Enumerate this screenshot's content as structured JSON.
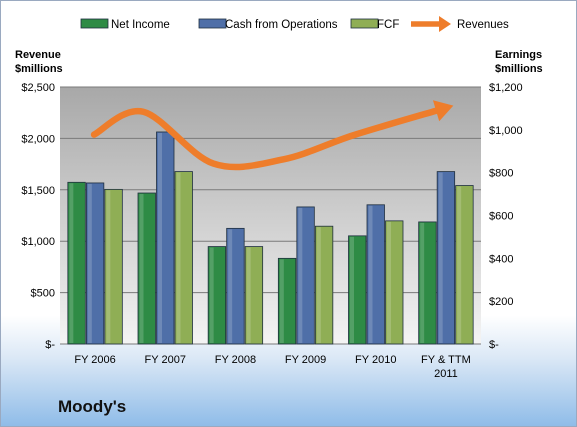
{
  "company": "Moody's",
  "chart_data": {
    "type": "bar",
    "categories": [
      "FY 2006",
      "FY 2007",
      "FY 2008",
      "FY 2009",
      "FY 2010",
      "FY & TTM 2011"
    ],
    "category_lines": [
      [
        "FY 2006"
      ],
      [
        "FY 2007"
      ],
      [
        "FY 2008"
      ],
      [
        "FY 2009"
      ],
      [
        "FY 2010"
      ],
      [
        "FY & TTM",
        "2011"
      ]
    ],
    "series": [
      {
        "name": "Net Income",
        "axis": "right",
        "color": "#2e8b45",
        "values": [
          755,
          705,
          455,
          400,
          505,
          570
        ]
      },
      {
        "name": "Cash from Operations",
        "axis": "right",
        "color": "#4f6fa8",
        "values": [
          752,
          990,
          540,
          640,
          650,
          805
        ]
      },
      {
        "name": "FCF",
        "axis": "right",
        "color": "#8fae55",
        "values": [
          722,
          805,
          455,
          550,
          575,
          740
        ]
      },
      {
        "name": "Revenues",
        "axis": "left",
        "type": "line",
        "color": "#ee7d2b",
        "values": [
          2037,
          2259,
          1755,
          1797,
          2032,
          2280
        ]
      }
    ],
    "left_axis": {
      "title_lines": [
        "Revenue",
        "$millions"
      ],
      "ylim": [
        0,
        2500
      ],
      "ticks": [
        0,
        500,
        1000,
        1500,
        2000,
        2500
      ],
      "tick_labels": [
        "$-",
        "$500",
        "$1,000",
        "$1,500",
        "$2,000",
        "$2,500"
      ]
    },
    "right_axis": {
      "title_lines": [
        "Earnings",
        "$millions"
      ],
      "ylim": [
        0,
        1200
      ],
      "ticks": [
        0,
        200,
        400,
        600,
        800,
        1000,
        1200
      ],
      "tick_labels": [
        "$-",
        "$200",
        "$400",
        "$600",
        "$800",
        "$1,000",
        "$1,200"
      ]
    },
    "legend": {
      "position": "top"
    },
    "grid": true
  }
}
